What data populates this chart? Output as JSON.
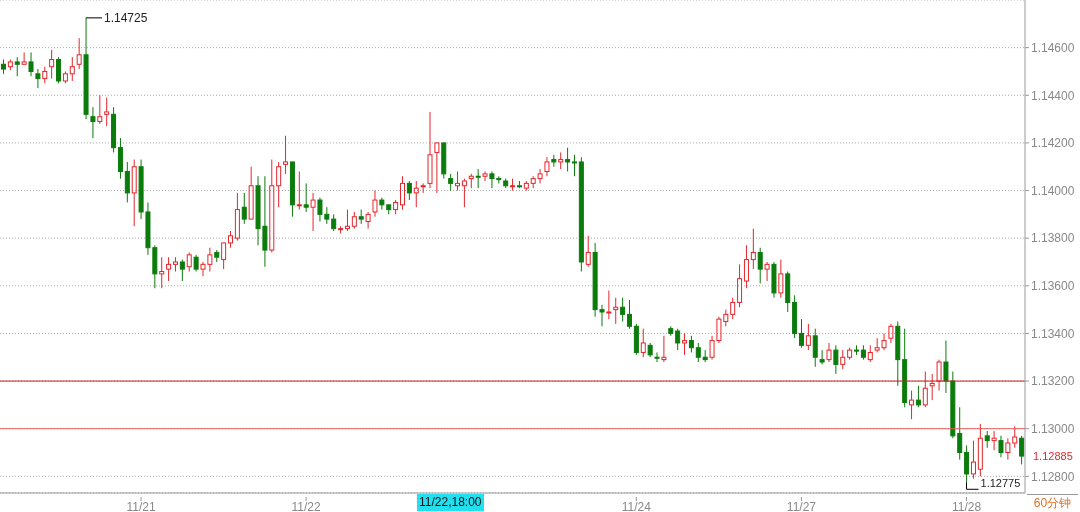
{
  "chart_data": {
    "type": "candlestick",
    "categories": [
      null,
      null,
      null,
      null,
      null,
      null,
      null,
      null,
      null,
      null,
      null,
      null,
      null,
      null,
      null,
      null,
      null,
      null,
      null,
      null,
      "11/21",
      null,
      null,
      null,
      null,
      null,
      null,
      null,
      null,
      null,
      null,
      null,
      null,
      null,
      null,
      null,
      null,
      null,
      null,
      null,
      null,
      null,
      null,
      null,
      "11/22",
      null,
      null,
      null,
      null,
      null,
      null,
      null,
      null,
      null,
      null,
      null,
      null,
      null,
      null,
      null,
      null,
      null,
      null,
      null,
      null,
      null,
      null,
      null,
      null,
      null,
      null,
      null,
      null,
      null,
      null,
      null,
      null,
      null,
      null,
      null,
      null,
      null,
      null,
      null,
      null,
      null,
      null,
      null,
      null,
      null,
      null,
      null,
      "11/24",
      null,
      null,
      null,
      null,
      null,
      null,
      null,
      null,
      null,
      null,
      null,
      null,
      null,
      null,
      null,
      null,
      null,
      null,
      null,
      null,
      null,
      null,
      null,
      "11/27",
      null,
      null,
      null,
      null,
      null,
      null,
      null,
      null,
      null,
      null,
      null,
      null,
      null,
      null,
      null,
      null,
      null,
      null,
      null,
      null,
      null,
      null,
      null,
      "11/28",
      null,
      null,
      null,
      null,
      null,
      null,
      null,
      null
    ],
    "ohlc": [
      [
        1.1453,
        1.1455,
        1.1449,
        1.1451
      ],
      [
        1.1452,
        1.1455,
        1.14505,
        1.1454
      ],
      [
        1.1454,
        1.1456,
        1.1448,
        1.1453
      ],
      [
        1.1453,
        1.1458,
        1.1453,
        1.1454
      ],
      [
        1.1454,
        1.1458,
        1.1448,
        1.145
      ],
      [
        1.1449,
        1.1451,
        1.1443,
        1.1447
      ],
      [
        1.1447,
        1.1452,
        1.1445,
        1.145
      ],
      [
        1.1452,
        1.1459,
        1.1447,
        1.1455
      ],
      [
        1.1455,
        1.1456,
        1.1445,
        1.1446
      ],
      [
        1.1446,
        1.145,
        1.1445,
        1.1449
      ],
      [
        1.1449,
        1.1456,
        1.1446,
        1.1452
      ],
      [
        1.1453,
        1.1464,
        1.1451,
        1.1457
      ],
      [
        1.1457,
        1.14725,
        1.143,
        1.1432
      ],
      [
        1.1431,
        1.1435,
        1.1422,
        1.1429
      ],
      [
        1.1429,
        1.144,
        1.1428,
        1.1431
      ],
      [
        1.1432,
        1.1439,
        1.1427,
        1.1433
      ],
      [
        1.1432,
        1.1435,
        1.1416,
        1.1418
      ],
      [
        1.1418,
        1.1422,
        1.1405,
        1.1408
      ],
      [
        1.1408,
        1.1412,
        1.1395,
        1.1399
      ],
      [
        1.1399,
        1.1413,
        1.1385,
        1.141
      ],
      [
        1.141,
        1.1413,
        1.1388,
        1.1391
      ],
      [
        1.1391,
        1.1395,
        1.1373,
        1.1376
      ],
      [
        1.1376,
        1.1377,
        1.1359,
        1.1365
      ],
      [
        1.1365,
        1.1372,
        1.1359,
        1.1366
      ],
      [
        1.1367,
        1.1372,
        1.1362,
        1.1369
      ],
      [
        1.1369,
        1.1372,
        1.1366,
        1.137
      ],
      [
        1.137,
        1.1371,
        1.1362,
        1.1367
      ],
      [
        1.1368,
        1.1374,
        1.1366,
        1.1373
      ],
      [
        1.1372,
        1.1373,
        1.1366,
        1.1367
      ],
      [
        1.1367,
        1.137,
        1.1364,
        1.1369
      ],
      [
        1.1369,
        1.1376,
        1.1366,
        1.1373
      ],
      [
        1.1374,
        1.1375,
        1.137,
        1.1372
      ],
      [
        1.1371,
        1.1378,
        1.1367,
        1.1378
      ],
      [
        1.1378,
        1.1383,
        1.1376,
        1.1381
      ],
      [
        1.138,
        1.1399,
        1.1379,
        1.1392
      ],
      [
        1.1393,
        1.1399,
        1.1386,
        1.1388
      ],
      [
        1.1388,
        1.141,
        1.1388,
        1.1402
      ],
      [
        1.1402,
        1.1406,
        1.1377,
        1.1384
      ],
      [
        1.1385,
        1.1406,
        1.1368,
        1.1375
      ],
      [
        1.1375,
        1.1413,
        1.1374,
        1.1402
      ],
      [
        1.1402,
        1.1412,
        1.1393,
        1.141
      ],
      [
        1.1411,
        1.1423,
        1.1407,
        1.1412
      ],
      [
        1.1412,
        1.1412,
        1.1389,
        1.1394
      ],
      [
        1.1394,
        1.1408,
        1.1392,
        1.1394
      ],
      [
        1.1394,
        1.1403,
        1.1391,
        1.1393
      ],
      [
        1.1393,
        1.1399,
        1.1383,
        1.1396
      ],
      [
        1.1396,
        1.1397,
        1.1387,
        1.139
      ],
      [
        1.139,
        1.1393,
        1.1386,
        1.1388
      ],
      [
        1.1388,
        1.139,
        1.1383,
        1.1384
      ],
      [
        1.1384,
        1.1385,
        1.1382,
        1.1384
      ],
      [
        1.1384,
        1.1392,
        1.1383,
        1.1385
      ],
      [
        1.1385,
        1.1391,
        1.1384,
        1.1389
      ],
      [
        1.1389,
        1.1392,
        1.1386,
        1.1388
      ],
      [
        1.1387,
        1.1391,
        1.1384,
        1.139
      ],
      [
        1.1391,
        1.14,
        1.1389,
        1.1396
      ],
      [
        1.1396,
        1.1397,
        1.1392,
        1.1394
      ],
      [
        1.1394,
        1.1394,
        1.139,
        1.1392
      ],
      [
        1.1392,
        1.1396,
        1.139,
        1.1395
      ],
      [
        1.1394,
        1.1406,
        1.1392,
        1.1403
      ],
      [
        1.1403,
        1.1404,
        1.1396,
        1.1399
      ],
      [
        1.1399,
        1.1404,
        1.1393,
        1.1401
      ],
      [
        1.1402,
        1.1403,
        1.1399,
        1.1402
      ],
      [
        1.1403,
        1.1433,
        1.1401,
        1.1415
      ],
      [
        1.1416,
        1.142,
        1.1399,
        1.142
      ],
      [
        1.142,
        1.142,
        1.1405,
        1.1407
      ],
      [
        1.1405,
        1.1407,
        1.14,
        1.1403
      ],
      [
        1.1402,
        1.1408,
        1.14,
        1.1403
      ],
      [
        1.1402,
        1.1405,
        1.1393,
        1.1404
      ],
      [
        1.1405,
        1.1407,
        1.1401,
        1.1406
      ],
      [
        1.1406,
        1.1409,
        1.1401,
        1.1406
      ],
      [
        1.1406,
        1.1408,
        1.1404,
        1.1407
      ],
      [
        1.1407,
        1.1408,
        1.1401,
        1.1405
      ],
      [
        1.1405,
        1.1406,
        1.1403,
        1.1405
      ],
      [
        1.1404,
        1.1405,
        1.1401,
        1.1402
      ],
      [
        1.1402,
        1.1405,
        1.14,
        1.1402
      ],
      [
        1.1402,
        1.1404,
        1.1401,
        1.1402
      ],
      [
        1.1401,
        1.1404,
        1.14,
        1.1403
      ],
      [
        1.1403,
        1.1406,
        1.1401,
        1.1405
      ],
      [
        1.1405,
        1.1409,
        1.1403,
        1.1407
      ],
      [
        1.1408,
        1.1414,
        1.1406,
        1.1412
      ],
      [
        1.1413,
        1.1415,
        1.141,
        1.1412
      ],
      [
        1.1412,
        1.1416,
        1.1409,
        1.1413
      ],
      [
        1.1413,
        1.1418,
        1.1408,
        1.1412
      ],
      [
        1.1412,
        1.1415,
        1.1406,
        1.1412
      ],
      [
        1.1412,
        1.1414,
        1.1366,
        1.137
      ],
      [
        1.1369,
        1.1381,
        1.1368,
        1.1374
      ],
      [
        1.1374,
        1.1378,
        1.1347,
        1.135
      ],
      [
        1.135,
        1.1352,
        1.1343,
        1.1349
      ],
      [
        1.1349,
        1.1358,
        1.1346,
        1.1349
      ],
      [
        1.135,
        1.1355,
        1.1344,
        1.1351
      ],
      [
        1.1351,
        1.1355,
        1.1345,
        1.1348
      ],
      [
        1.1348,
        1.1354,
        1.1342,
        1.1343
      ],
      [
        1.1343,
        1.1344,
        1.1331,
        1.1332
      ],
      [
        1.1332,
        1.1342,
        1.133,
        1.1336
      ],
      [
        1.1335,
        1.1336,
        1.133,
        1.1331
      ],
      [
        1.133,
        1.1332,
        1.1328,
        1.133
      ],
      [
        1.1329,
        1.1339,
        1.1328,
        1.133
      ],
      [
        1.1342,
        1.1343,
        1.1339,
        1.134
      ],
      [
        1.1341,
        1.1342,
        1.1333,
        1.1336
      ],
      [
        1.1336,
        1.134,
        1.1331,
        1.1337
      ],
      [
        1.1337,
        1.1339,
        1.1332,
        1.1334
      ],
      [
        1.1334,
        1.1336,
        1.1328,
        1.133
      ],
      [
        1.133,
        1.1333,
        1.1328,
        1.1329
      ],
      [
        1.133,
        1.1339,
        1.1329,
        1.1337
      ],
      [
        1.1337,
        1.1347,
        1.1336,
        1.1346
      ],
      [
        1.1345,
        1.135,
        1.1343,
        1.1348
      ],
      [
        1.1348,
        1.1355,
        1.1346,
        1.1353
      ],
      [
        1.1353,
        1.1369,
        1.1351,
        1.1363
      ],
      [
        1.1362,
        1.1377,
        1.1359,
        1.1371
      ],
      [
        1.1371,
        1.1384,
        1.1367,
        1.1374
      ],
      [
        1.1374,
        1.1376,
        1.1361,
        1.1367
      ],
      [
        1.1367,
        1.137,
        1.1362,
        1.1369
      ],
      [
        1.1369,
        1.137,
        1.1355,
        1.1357
      ],
      [
        1.1357,
        1.1371,
        1.1355,
        1.1365
      ],
      [
        1.1365,
        1.1366,
        1.1349,
        1.1353
      ],
      [
        1.1353,
        1.1356,
        1.1338,
        1.134
      ],
      [
        1.134,
        1.1346,
        1.1334,
        1.1335
      ],
      [
        1.1335,
        1.1344,
        1.1333,
        1.1339
      ],
      [
        1.1339,
        1.1342,
        1.1326,
        1.133
      ],
      [
        1.1329,
        1.1333,
        1.1327,
        1.1328
      ],
      [
        1.1329,
        1.1336,
        1.1328,
        1.1333
      ],
      [
        1.1333,
        1.1335,
        1.1323,
        1.1327
      ],
      [
        1.1327,
        1.1333,
        1.1325,
        1.133
      ],
      [
        1.133,
        1.1334,
        1.1329,
        1.1333
      ],
      [
        1.1333,
        1.1335,
        1.1331,
        1.1333
      ],
      [
        1.1333,
        1.1335,
        1.1329,
        1.133
      ],
      [
        1.1329,
        1.1335,
        1.1328,
        1.1332
      ],
      [
        1.1333,
        1.1338,
        1.1332,
        1.1334
      ],
      [
        1.1334,
        1.134,
        1.1333,
        1.1337
      ],
      [
        1.1338,
        1.1344,
        1.1336,
        1.1343
      ],
      [
        1.1343,
        1.1345,
        1.1318,
        1.1329
      ],
      [
        1.1329,
        1.1342,
        1.1309,
        1.1311
      ],
      [
        1.131,
        1.1316,
        1.1304,
        1.1312
      ],
      [
        1.1312,
        1.1318,
        1.1309,
        1.131
      ],
      [
        1.131,
        1.1324,
        1.1309,
        1.1317
      ],
      [
        1.1318,
        1.1323,
        1.1312,
        1.1319
      ],
      [
        1.132,
        1.1329,
        1.1316,
        1.1328
      ],
      [
        1.1328,
        1.1337,
        1.1315,
        1.132
      ],
      [
        1.132,
        1.1324,
        1.1296,
        1.1297
      ],
      [
        1.1298,
        1.1309,
        1.1287,
        1.129
      ],
      [
        1.129,
        1.1293,
        1.12775,
        1.1281
      ],
      [
        1.1281,
        1.1295,
        1.1279,
        1.1286
      ],
      [
        1.1283,
        1.1302,
        1.128,
        1.1296
      ],
      [
        1.1297,
        1.1299,
        1.1292,
        1.1295
      ],
      [
        1.1295,
        1.1299,
        1.1291,
        1.1296
      ],
      [
        1.1295,
        1.1297,
        1.1288,
        1.129
      ],
      [
        1.129,
        1.1296,
        1.1287,
        1.1294
      ],
      [
        1.1294,
        1.1301,
        1.1292,
        1.12965
      ],
      [
        1.1296,
        1.1297,
        1.1285,
        1.12885
      ]
    ],
    "colors": [
      "#0b7b0b",
      "#e4262c",
      "#0b7b0b",
      "#e4262c",
      "#0b7b0b",
      "#0b7b0b",
      "#e4262c",
      "#e4262c",
      "#0b7b0b",
      "#e4262c",
      "#e4262c",
      "#e4262c",
      "#0b7b0b",
      "#0b7b0b",
      "#e4262c",
      "#e4262c",
      "#0b7b0b",
      "#0b7b0b",
      "#0b7b0b",
      "#e4262c",
      "#0b7b0b",
      "#0b7b0b",
      "#0b7b0b",
      "#e4262c",
      "#e4262c",
      "#e4262c",
      "#0b7b0b",
      "#e4262c",
      "#0b7b0b",
      "#e4262c",
      "#e4262c",
      "#0b7b0b",
      "#e4262c",
      "#e4262c",
      "#e4262c",
      "#0b7b0b",
      "#e4262c",
      "#0b7b0b",
      "#0b7b0b",
      "#e4262c",
      "#e4262c",
      "#e4262c",
      "#0b7b0b",
      "#e4262c",
      "#0b7b0b",
      "#e4262c",
      "#0b7b0b",
      "#0b7b0b",
      "#0b7b0b",
      "#e4262c",
      "#e4262c",
      "#e4262c",
      "#0b7b0b",
      "#e4262c",
      "#e4262c",
      "#0b7b0b",
      "#0b7b0b",
      "#e4262c",
      "#e4262c",
      "#0b7b0b",
      "#e4262c",
      "#e4262c",
      "#e4262c",
      "#e4262c",
      "#0b7b0b",
      "#0b7b0b",
      "#e4262c",
      "#e4262c",
      "#e4262c",
      "#0b7b0b",
      "#e4262c",
      "#0b7b0b",
      "#0b7b0b",
      "#0b7b0b",
      "#e4262c",
      "#0b7b0b",
      "#e4262c",
      "#e4262c",
      "#e4262c",
      "#e4262c",
      "#0b7b0b",
      "#e4262c",
      "#0b7b0b",
      "#0b7b0b",
      "#0b7b0b",
      "#e4262c",
      "#0b7b0b",
      "#0b7b0b",
      "#e4262c",
      "#e4262c",
      "#0b7b0b",
      "#0b7b0b",
      "#0b7b0b",
      "#e4262c",
      "#0b7b0b",
      "#0b7b0b",
      "#e4262c",
      "#0b7b0b",
      "#0b7b0b",
      "#e4262c",
      "#0b7b0b",
      "#0b7b0b",
      "#0b7b0b",
      "#e4262c",
      "#e4262c",
      "#e4262c",
      "#e4262c",
      "#e4262c",
      "#e4262c",
      "#e4262c",
      "#0b7b0b",
      "#e4262c",
      "#0b7b0b",
      "#e4262c",
      "#0b7b0b",
      "#0b7b0b",
      "#0b7b0b",
      "#e4262c",
      "#0b7b0b",
      "#0b7b0b",
      "#e4262c",
      "#0b7b0b",
      "#e4262c",
      "#e4262c",
      "#0b7b0b",
      "#0b7b0b",
      "#e4262c",
      "#e4262c",
      "#e4262c",
      "#e4262c",
      "#0b7b0b",
      "#0b7b0b",
      "#e4262c",
      "#0b7b0b",
      "#e4262c",
      "#e4262c",
      "#e4262c",
      "#0b7b0b",
      "#0b7b0b",
      "#0b7b0b",
      "#0b7b0b",
      "#e4262c",
      "#e4262c",
      "#0b7b0b",
      "#e4262c",
      "#0b7b0b",
      "#e4262c",
      "#e4262c",
      "#0b7b0b"
    ],
    "ylim": [
      1.1273,
      1.148
    ],
    "yticks": [
      {
        "value": 1.128,
        "label": "1.12800"
      },
      {
        "value": 1.13,
        "label": "1.13000"
      },
      {
        "value": 1.132,
        "label": "1.13200"
      },
      {
        "value": 1.134,
        "label": "1.13400"
      },
      {
        "value": 1.136,
        "label": "1.13600"
      },
      {
        "value": 1.138,
        "label": "1.13800"
      },
      {
        "value": 1.14,
        "label": "1.14000"
      },
      {
        "value": 1.142,
        "label": "1.14200"
      },
      {
        "value": 1.144,
        "label": "1.14400"
      },
      {
        "value": 1.146,
        "label": "1.14600"
      }
    ],
    "grid": "y",
    "ref_lines": [
      {
        "axis": "y",
        "value": 1.132,
        "color": "#cc1a1a"
      },
      {
        "axis": "y",
        "value": 1.13,
        "color": "#e86060"
      }
    ],
    "annotations": [
      "1.14725",
      "1.12775",
      "1.12885",
      "11/22,18:00",
      "60分钟"
    ]
  }
}
